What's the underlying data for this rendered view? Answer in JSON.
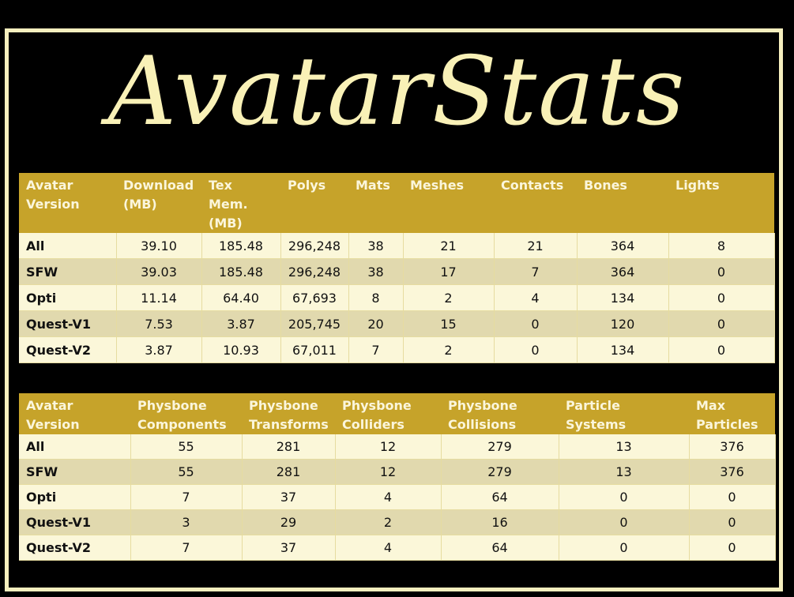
{
  "title": "AvatarStats",
  "table1": {
    "headers": [
      "Avatar Version",
      "Download (MB)",
      "Tex Mem. (MB)",
      "Polys",
      "Mats",
      "Meshes",
      "Contacts",
      "Bones",
      "Lights"
    ],
    "rows": [
      [
        "All",
        "39.10",
        "185.48",
        "296,248",
        "38",
        "21",
        "21",
        "364",
        "8"
      ],
      [
        "SFW",
        "39.03",
        "185.48",
        "296,248",
        "38",
        "17",
        "7",
        "364",
        "0"
      ],
      [
        "Opti",
        "11.14",
        "64.40",
        "67,693",
        "8",
        "2",
        "4",
        "134",
        "0"
      ],
      [
        "Quest-V1",
        "7.53",
        "3.87",
        "205,745",
        "20",
        "15",
        "0",
        "120",
        "0"
      ],
      [
        "Quest-V2",
        "3.87",
        "10.93",
        "67,011",
        "7",
        "2",
        "0",
        "134",
        "0"
      ]
    ]
  },
  "table2": {
    "headers": [
      "Avatar Version",
      "Physbone Components",
      "Physbone Transforms",
      "Physbone Colliders",
      "Physbone Collisions",
      "Particle Systems",
      "Max Particles"
    ],
    "rows": [
      [
        "All",
        "55",
        "281",
        "12",
        "279",
        "13",
        "376"
      ],
      [
        "SFW",
        "55",
        "281",
        "12",
        "279",
        "13",
        "376"
      ],
      [
        "Opti",
        "7",
        "37",
        "4",
        "64",
        "0",
        "0"
      ],
      [
        "Quest-V1",
        "3",
        "29",
        "2",
        "16",
        "0",
        "0"
      ],
      [
        "Quest-V2",
        "7",
        "37",
        "4",
        "64",
        "0",
        "0"
      ]
    ]
  }
}
